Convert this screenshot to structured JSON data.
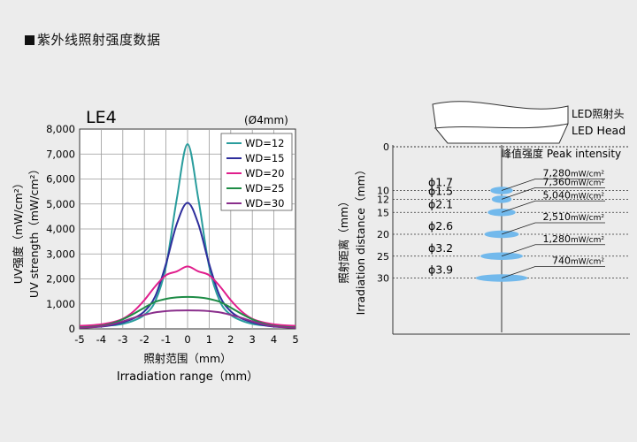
{
  "page": {
    "title": "紫外线照射强度数据"
  },
  "left_chart": {
    "model": "LE4",
    "spot": "(Ø4mm)",
    "ylabel_cn": "UV强度（mW/cm²）",
    "ylabel_en": "UV strength（mW/cm²）",
    "xlabel_cn": "照射范围（mm）",
    "xlabel_en": "Irradiation range（mm）",
    "yticks": [
      "0",
      "1,000",
      "2,000",
      "3,000",
      "4,000",
      "5,000",
      "6,000",
      "7,000",
      "8,000"
    ],
    "xticks": [
      "-5",
      "-4",
      "-3",
      "-2",
      "-1",
      "0",
      "1",
      "2",
      "3",
      "4",
      "5"
    ]
  },
  "right_diagram": {
    "head_cn": "LED照射头",
    "head_en": "LED Head",
    "peak_label": "峰值强度 Peak intensity",
    "ylabel_cn": "照射距离（mm）",
    "ylabel_en": "Irradiation distance（mm）",
    "zero_label": "0",
    "rows": [
      {
        "wd": "10",
        "diameter": "ϕ1.7",
        "peak": "7,280",
        "unit": "mW/cm²"
      },
      {
        "wd": "12",
        "diameter": "ϕ1.5",
        "peak": "7,360",
        "unit": "mW/cm²"
      },
      {
        "wd": "15",
        "diameter": "ϕ2.1",
        "peak": "5,040",
        "unit": "mW/cm²"
      },
      {
        "wd": "20",
        "diameter": "ϕ2.6",
        "peak": "2,510",
        "unit": "mW/cm²"
      },
      {
        "wd": "25",
        "diameter": "ϕ3.2",
        "peak": "1,280",
        "unit": "mW/cm²"
      },
      {
        "wd": "30",
        "diameter": "ϕ3.9",
        "peak": "740",
        "unit": "mW/cm²"
      }
    ]
  },
  "chart_data": {
    "type": "line",
    "title": "LE4",
    "subtitle": "(Ø4mm)",
    "xlabel": "Irradiation range（mm）",
    "ylabel": "UV strength（mW/cm²）",
    "xlim": [
      -5,
      5
    ],
    "ylim": [
      0,
      8000
    ],
    "grid": true,
    "legend_position": "top-right",
    "x": [
      -5,
      -4.5,
      -4,
      -3.5,
      -3,
      -2.5,
      -2,
      -1.5,
      -1,
      -0.5,
      0,
      0.5,
      1,
      1.5,
      2,
      2.5,
      3,
      3.5,
      4,
      4.5,
      5
    ],
    "series": [
      {
        "name": "WD=12",
        "color": "#2a9d9d",
        "values": [
          100,
          105,
          120,
          140,
          200,
          330,
          560,
          1100,
          2500,
          5200,
          7400,
          5200,
          2500,
          1100,
          560,
          330,
          200,
          140,
          120,
          105,
          100
        ]
      },
      {
        "name": "WD=15",
        "color": "#2e2e9c",
        "values": [
          60,
          70,
          90,
          150,
          260,
          420,
          700,
          1300,
          2600,
          4200,
          5050,
          4200,
          2600,
          1300,
          700,
          420,
          260,
          150,
          90,
          70,
          60
        ]
      },
      {
        "name": "WD=20",
        "color": "#e01e8c",
        "values": [
          120,
          140,
          180,
          260,
          400,
          700,
          1150,
          1700,
          2150,
          2300,
          2500,
          2300,
          2150,
          1700,
          1150,
          700,
          400,
          260,
          180,
          140,
          120
        ]
      },
      {
        "name": "WD=25",
        "color": "#1e8c46",
        "values": [
          60,
          80,
          120,
          220,
          380,
          600,
          850,
          1080,
          1200,
          1260,
          1280,
          1260,
          1200,
          1080,
          850,
          600,
          380,
          220,
          120,
          80,
          60
        ]
      },
      {
        "name": "WD=30",
        "color": "#8a2f8c",
        "values": [
          40,
          60,
          100,
          180,
          300,
          440,
          560,
          660,
          710,
          735,
          740,
          735,
          710,
          660,
          560,
          440,
          300,
          180,
          100,
          60,
          40
        ]
      }
    ]
  }
}
